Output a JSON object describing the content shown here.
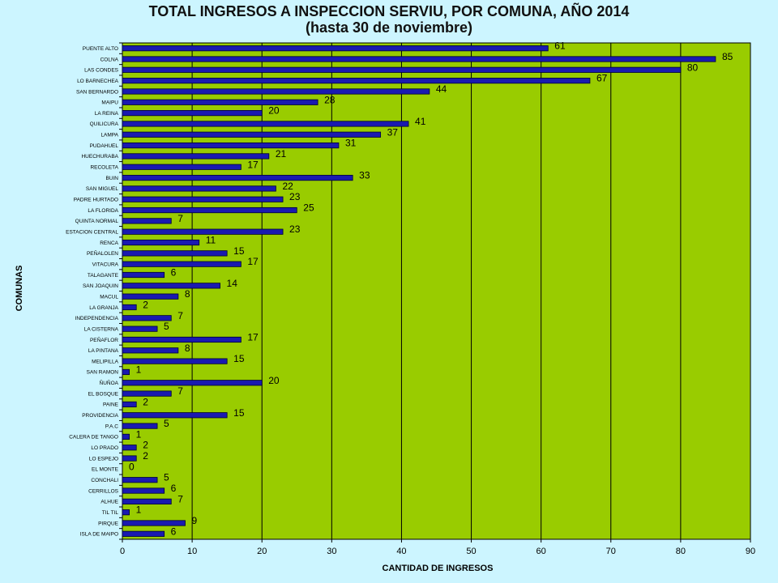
{
  "chart_data": {
    "type": "bar",
    "orientation": "horizontal",
    "title": "TOTAL INGRESOS A INSPECCION SERVIU, POR COMUNA, AÑO 2014",
    "subtitle": "(hasta 30 de noviembre)",
    "xlabel": "CANTIDAD DE INGRESOS",
    "ylabel": "COMUNAS",
    "xlim": [
      0,
      90
    ],
    "xticks": [
      0,
      10,
      20,
      30,
      40,
      50,
      60,
      70,
      80,
      90
    ],
    "grid": "vertical",
    "colors": {
      "plot_bg": "#99cc00",
      "bar": "#1a1ab0",
      "bar_edge": "#000033",
      "page_bg": "#ccf5ff"
    },
    "categories": [
      "PUENTE ALTO",
      "COLNA",
      "LAS CONDES",
      "LO BARNECHEA",
      "SAN BERNARDO",
      "MAIPU",
      "LA REINA",
      "QUILICURA",
      "LAMPA",
      "PUDAHUEL",
      "HUECHURABA",
      "RECOLETA",
      "BUIN",
      "SAN MIGUEL",
      "PADRE HURTADO",
      "LA FLORIDA",
      "QUINTA NORMAL",
      "ESTACION CENTRAL",
      "RENCA",
      "PEÑALOLEN",
      "VITACURA",
      "TALAGANTE",
      "SAN JOAQUIN",
      "MACUL",
      "LA GRANJA",
      "INDEPENDENCIA",
      "LA CISTERNA",
      "PEÑAFLOR",
      "LA PINTANA",
      "MELIPILLA",
      "SAN RAMON",
      "ÑUÑOA",
      "EL BOSQUE",
      "PAINE",
      "PROVIDENCIA",
      "P.A.C",
      "CALERA DE TANGO",
      "LO PRADO",
      "LO ESPEJO",
      "EL MONTE",
      "CONCHALI",
      "CERRILLOS",
      "ALHUE",
      "TIL TIL",
      "PIRQUE",
      "ISLA DE MAIPO"
    ],
    "values": [
      61,
      85,
      80,
      67,
      44,
      28,
      20,
      41,
      37,
      31,
      21,
      17,
      33,
      22,
      23,
      25,
      7,
      23,
      11,
      15,
      17,
      6,
      14,
      8,
      2,
      7,
      5,
      17,
      8,
      15,
      1,
      20,
      7,
      2,
      15,
      5,
      1,
      2,
      2,
      0,
      5,
      6,
      7,
      1,
      9,
      6
    ]
  }
}
